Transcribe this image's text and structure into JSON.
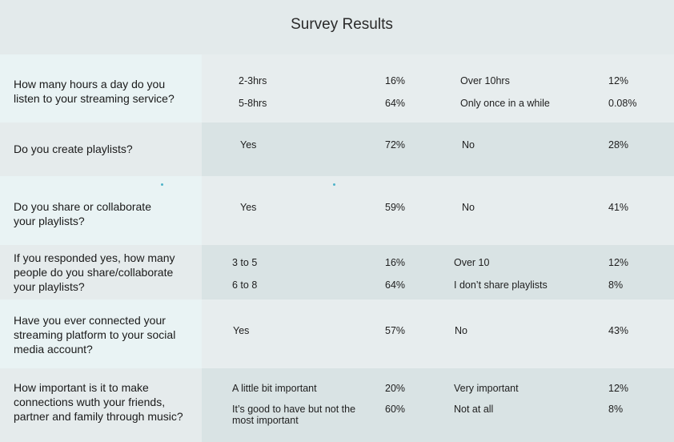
{
  "title": "Survey Results",
  "rows": [
    {
      "question": "How many hours a day do you\nlisten to your streaming service?",
      "answers": [
        {
          "option": "2-3hrs",
          "pct": "16%",
          "option2": "Over 10hrs",
          "pct2": "12%"
        },
        {
          "option": "5-8hrs",
          "pct": "64%",
          "option2": "Only once in a while",
          "pct2": "0.08%"
        }
      ]
    },
    {
      "question": "Do you create playlists?",
      "answers": [
        {
          "option": "Yes",
          "pct": "72%",
          "option2": "No",
          "pct2": "28%"
        }
      ]
    },
    {
      "question": "Do you share or collaborate\nyour playlists?",
      "answers": [
        {
          "option": "Yes",
          "pct": "59%",
          "option2": "No",
          "pct2": "41%"
        }
      ]
    },
    {
      "question": "If you responded yes, how many\npeople do you share/collaborate\nyour playlists?",
      "answers": [
        {
          "option": "3 to 5",
          "pct": "16%",
          "option2": "Over 10",
          "pct2": "12%"
        },
        {
          "option": "6 to 8",
          "pct": "64%",
          "option2": "I don’t share playlists",
          "pct2": "8%"
        }
      ]
    },
    {
      "question": "Have you ever connected your\nstreaming platform to your social\nmedia account?",
      "answers": [
        {
          "option": "Yes",
          "pct": "57%",
          "option2": "No",
          "pct2": "43%"
        }
      ]
    },
    {
      "question": "How important is it to make\nconnections wuth  your friends,\npartner and family through music?",
      "answers": [
        {
          "option": "A little bit important",
          "pct": "20%",
          "option2": "Very important",
          "pct2": "12%"
        },
        {
          "option": "It’s good to have but not the\nmost important",
          "pct": "60%",
          "option2": "Not at all",
          "pct2": "8%"
        }
      ]
    }
  ]
}
